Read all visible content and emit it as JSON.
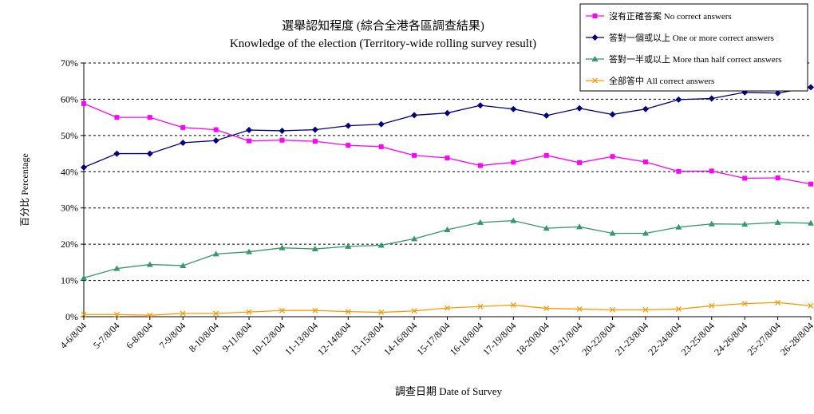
{
  "chart_data": {
    "type": "line",
    "title": "選舉認知程度 (綜合全港各區調查結果)",
    "subtitle": "Knowledge of the election (Territory-wide rolling survey result)",
    "xlabel": "調查日期 Date of Survey",
    "ylabel": "百分比 Percentage",
    "ylim": [
      0,
      70
    ],
    "yticks": [
      "0%",
      "10%",
      "20%",
      "30%",
      "40%",
      "50%",
      "60%",
      "70%"
    ],
    "grid": "horizontal dashed",
    "legend_position": "top-right",
    "categories": [
      "4-6/8/04",
      "5-7/8/04",
      "6-8/8/04",
      "7-9/8/04",
      "8-10/8/04",
      "9-11/8/04",
      "10-12/8/04",
      "11-13/8/04",
      "12-14/8/04",
      "13-15/8/04",
      "14-16/8/04",
      "15-17/8/04",
      "16-18/8/04",
      "17-19/8/04",
      "18-20/8/04",
      "19-21/8/04",
      "20-22/8/04",
      "21-23/8/04",
      "22-24/8/04",
      "23-25/8/04",
      "24-26/8/04",
      "25-27/8/04",
      "26-28/8/04"
    ],
    "series": [
      {
        "name": "沒有正確答案 No correct answers",
        "color": "#ff00ff",
        "marker": "square",
        "values": [
          58.8,
          55.0,
          55.0,
          52.2,
          51.6,
          48.5,
          48.7,
          48.4,
          47.3,
          46.9,
          44.5,
          43.8,
          41.7,
          42.6,
          44.5,
          42.5,
          44.2,
          42.7,
          40.1,
          40.2,
          38.2,
          38.3,
          36.6
        ]
      },
      {
        "name": "答對一個或以上 One or more correct answers",
        "color": "#000080",
        "marker": "diamond",
        "values": [
          41.2,
          45.0,
          45.0,
          48.0,
          48.6,
          51.5,
          51.3,
          51.6,
          52.7,
          53.1,
          55.6,
          56.2,
          58.3,
          57.3,
          55.5,
          57.5,
          55.8,
          57.3,
          59.9,
          60.2,
          61.9,
          61.7,
          63.3
        ]
      },
      {
        "name": "答對一半或以上 More than half correct answers",
        "color": "#339966",
        "marker": "triangle",
        "values": [
          10.7,
          13.3,
          14.4,
          14.1,
          17.3,
          17.9,
          19.0,
          18.7,
          19.4,
          19.7,
          21.5,
          24.0,
          26.0,
          26.5,
          24.4,
          24.8,
          23.0,
          23.0,
          24.7,
          25.6,
          25.5,
          26.0,
          25.8
        ]
      },
      {
        "name": "全部答中 All correct answers",
        "color": "#ff9900",
        "marker": "x",
        "values": [
          0.6,
          0.6,
          0.4,
          0.9,
          0.9,
          1.3,
          1.7,
          1.7,
          1.4,
          1.2,
          1.6,
          2.4,
          2.8,
          3.2,
          2.3,
          2.1,
          1.9,
          1.9,
          2.1,
          3.0,
          3.6,
          3.9,
          3.0
        ]
      }
    ]
  }
}
